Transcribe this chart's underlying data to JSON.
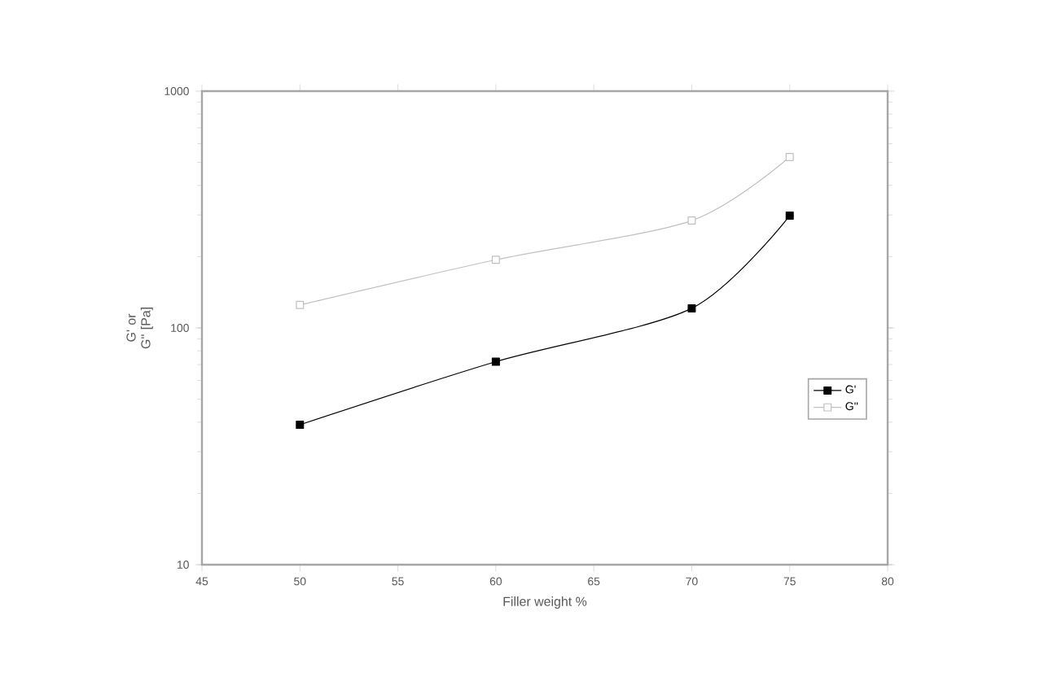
{
  "chart_data": {
    "type": "line",
    "xlabel": "Filler weight %",
    "ylabel": "G' or G'' [Pa]",
    "x": [
      50,
      60,
      70,
      75
    ],
    "series": [
      {
        "name": "G'",
        "color": "#000000",
        "values": [
          39,
          72,
          121,
          298
        ]
      },
      {
        "name": "G''",
        "color": "#c0c0c0",
        "values": [
          125,
          194,
          284,
          527
        ]
      }
    ],
    "xlim": [
      45,
      80
    ],
    "xticks": [
      45,
      50,
      55,
      60,
      65,
      70,
      75,
      80
    ],
    "ylim": [
      10,
      1000
    ],
    "yticks": [
      10,
      100,
      1000
    ],
    "log": "y",
    "grid": false,
    "legend": "right",
    "marker": "square",
    "line_style": "solid"
  }
}
